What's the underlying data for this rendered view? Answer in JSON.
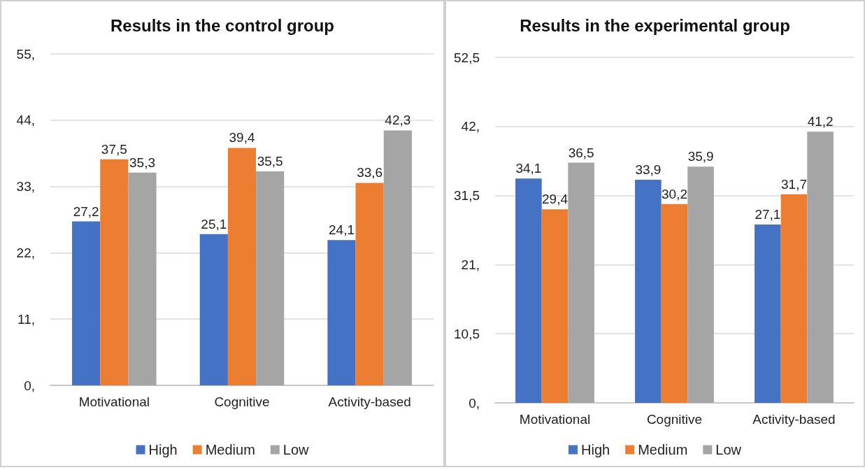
{
  "chart_data": [
    {
      "type": "bar",
      "title": "Results in the control group",
      "categories": [
        "Motivational",
        "Cognitive",
        "Activity-based"
      ],
      "series": [
        {
          "name": "High",
          "color": "#4472c4",
          "values": [
            27.2,
            25.1,
            24.1
          ],
          "value_labels": [
            "27,2",
            "25,1",
            "24,1"
          ]
        },
        {
          "name": "Medium",
          "color": "#ed7d31",
          "values": [
            37.5,
            39.4,
            33.6
          ],
          "value_labels": [
            "37,5",
            "39,4",
            "33,6"
          ]
        },
        {
          "name": "Low",
          "color": "#a5a5a5",
          "values": [
            35.3,
            35.5,
            42.3
          ],
          "value_labels": [
            "35,3",
            "35,5",
            "42,3"
          ]
        }
      ],
      "ylim": [
        0,
        55
      ],
      "yticks": [
        {
          "value": 0,
          "label": "0,"
        },
        {
          "value": 11,
          "label": "11,"
        },
        {
          "value": 22,
          "label": "22,"
        },
        {
          "value": 33,
          "label": "33,"
        },
        {
          "value": 44,
          "label": "44,"
        },
        {
          "value": 55,
          "label": "55,"
        }
      ],
      "grid": "y",
      "legend": "bottom"
    },
    {
      "type": "bar",
      "title": "Results in the experimental group",
      "categories": [
        "Motivational",
        "Cognitive",
        "Activity-based"
      ],
      "series": [
        {
          "name": "High",
          "color": "#4472c4",
          "values": [
            34.1,
            33.9,
            27.1
          ],
          "value_labels": [
            "34,1",
            "33,9",
            "27,1"
          ]
        },
        {
          "name": "Medium",
          "color": "#ed7d31",
          "values": [
            29.4,
            30.2,
            31.7
          ],
          "value_labels": [
            "29,4",
            "30,2",
            "31,7"
          ]
        },
        {
          "name": "Low",
          "color": "#a5a5a5",
          "values": [
            36.5,
            35.9,
            41.2
          ],
          "value_labels": [
            "36,5",
            "35,9",
            "41,2"
          ]
        }
      ],
      "ylim": [
        0,
        52.5
      ],
      "yticks": [
        {
          "value": 0,
          "label": "0,"
        },
        {
          "value": 10.5,
          "label": "10,5"
        },
        {
          "value": 21,
          "label": "21,"
        },
        {
          "value": 31.5,
          "label": "31,5"
        },
        {
          "value": 42,
          "label": "42,"
        },
        {
          "value": 52.5,
          "label": "52,5"
        }
      ],
      "grid": "y",
      "legend": "bottom"
    }
  ]
}
